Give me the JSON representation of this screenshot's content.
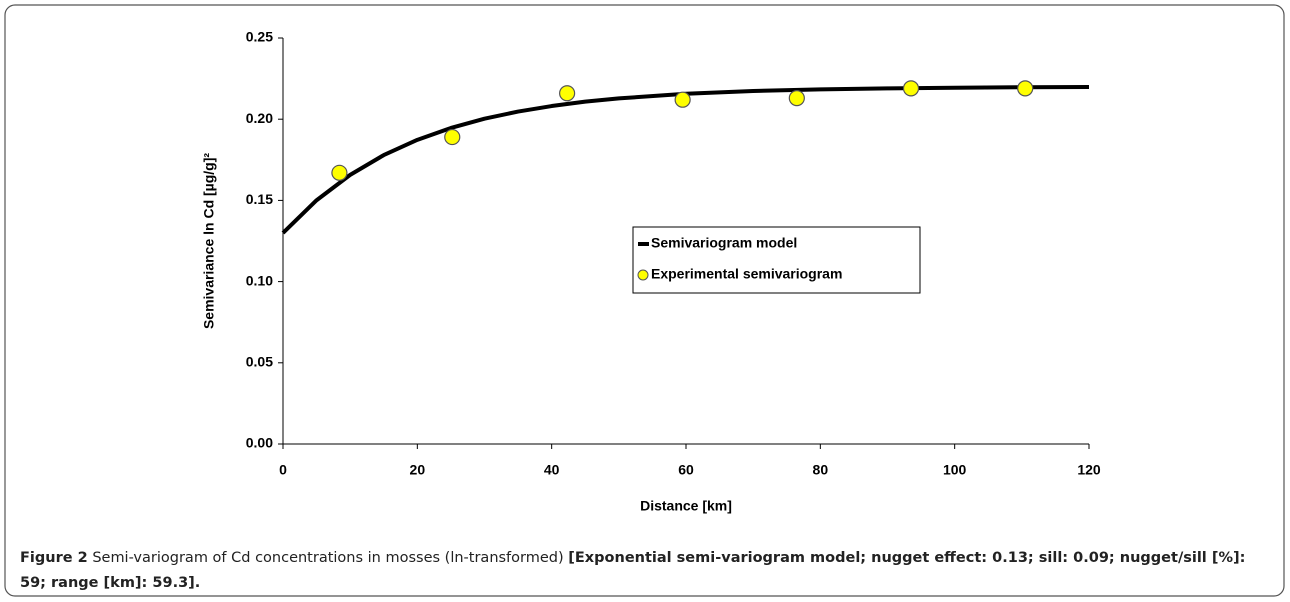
{
  "chart_data": {
    "type": "combo",
    "xlabel": "Distance [km]",
    "ylabel": "Semivariance ln Cd [µg/g]²",
    "xlim": [
      0,
      120
    ],
    "xticks": [
      0,
      20,
      40,
      60,
      80,
      100,
      120
    ],
    "ylim": [
      0,
      0.25
    ],
    "yticks": [
      {
        "value": 0,
        "label": "0.00"
      },
      {
        "value": 0.05,
        "label": "0.05"
      },
      {
        "value": 0.1,
        "label": "0.10"
      },
      {
        "value": 0.15,
        "label": "0.15"
      },
      {
        "value": 0.2,
        "label": "0.20"
      },
      {
        "value": 0.25,
        "label": "0.25"
      }
    ],
    "grid": false,
    "legend": "center",
    "series": [
      {
        "name": "Semivariogram model",
        "type": "line",
        "color": "#000000",
        "x": [
          0,
          5,
          10,
          15,
          20,
          25,
          30,
          35,
          40,
          45,
          50,
          60,
          70,
          80,
          90,
          100,
          110,
          120
        ],
        "values": [
          0.13,
          0.1501,
          0.1657,
          0.1779,
          0.1873,
          0.1946,
          0.2003,
          0.2047,
          0.2081,
          0.2108,
          0.2128,
          0.2157,
          0.2174,
          0.2184,
          0.219,
          0.2194,
          0.2197,
          0.2198
        ]
      },
      {
        "name": "Experimental semivariogram",
        "type": "scatter",
        "color": "#ffff00",
        "x": [
          8.4,
          25.2,
          42.3,
          59.5,
          76.5,
          93.5,
          110.5
        ],
        "values": [
          0.167,
          0.189,
          0.216,
          0.212,
          0.213,
          0.219,
          0.219
        ]
      }
    ]
  },
  "caption": {
    "label": "Figure 2",
    "text": "Semi-variogram of Cd concentrations in mosses (ln-transformed)",
    "detail": "[Exponential semi-variogram model; nugget effect: 0.13; sill: 0.09; nugget/sill [%]: 59; range [km]: 59.3]."
  }
}
